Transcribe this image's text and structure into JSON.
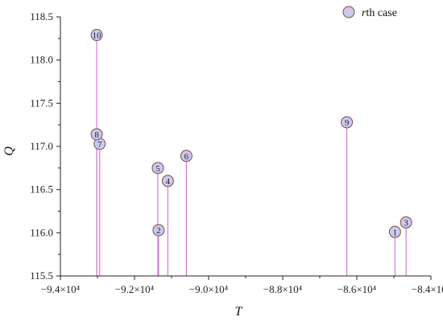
{
  "chart_data": {
    "type": "scatter",
    "subtype": "stem",
    "xlabel": "T",
    "ylabel": "Q",
    "xlim": [
      -94000,
      -84000
    ],
    "ylim": [
      115.5,
      118.5
    ],
    "x_ticks": [
      -94000,
      -92000,
      -90000,
      -88000,
      -86000,
      -84000
    ],
    "x_tick_labels": [
      "−9.4×10⁴",
      "−9.2×10⁴",
      "−9.0×10⁴",
      "−8.8×10⁴",
      "−8.6×10⁴",
      "−8.4×10⁴"
    ],
    "y_ticks": [
      115.5,
      116.0,
      116.5,
      117.0,
      117.5,
      118.0,
      118.5
    ],
    "y_tick_labels": [
      "115.5",
      "116.0",
      "116.5",
      "117.0",
      "117.5",
      "118.0",
      "118.5"
    ],
    "legend": {
      "label_italic": "r",
      "label_rest": "th case",
      "position": "top-right"
    },
    "colors": {
      "marker_fill": "#c9c9f2",
      "marker_edge": "#8b4a3a",
      "stem": "#d67ad6"
    },
    "points": [
      {
        "label": "1",
        "x": -84970,
        "y": 116.01
      },
      {
        "label": "2",
        "x": -91350,
        "y": 116.03
      },
      {
        "label": "3",
        "x": -84670,
        "y": 116.12
      },
      {
        "label": "4",
        "x": -91100,
        "y": 116.6
      },
      {
        "label": "5",
        "x": -91370,
        "y": 116.75
      },
      {
        "label": "6",
        "x": -90600,
        "y": 116.89
      },
      {
        "label": "7",
        "x": -92940,
        "y": 117.03
      },
      {
        "label": "8",
        "x": -93020,
        "y": 117.14
      },
      {
        "label": "9",
        "x": -86270,
        "y": 117.28
      },
      {
        "label": "10",
        "x": -93020,
        "y": 118.29
      }
    ]
  }
}
